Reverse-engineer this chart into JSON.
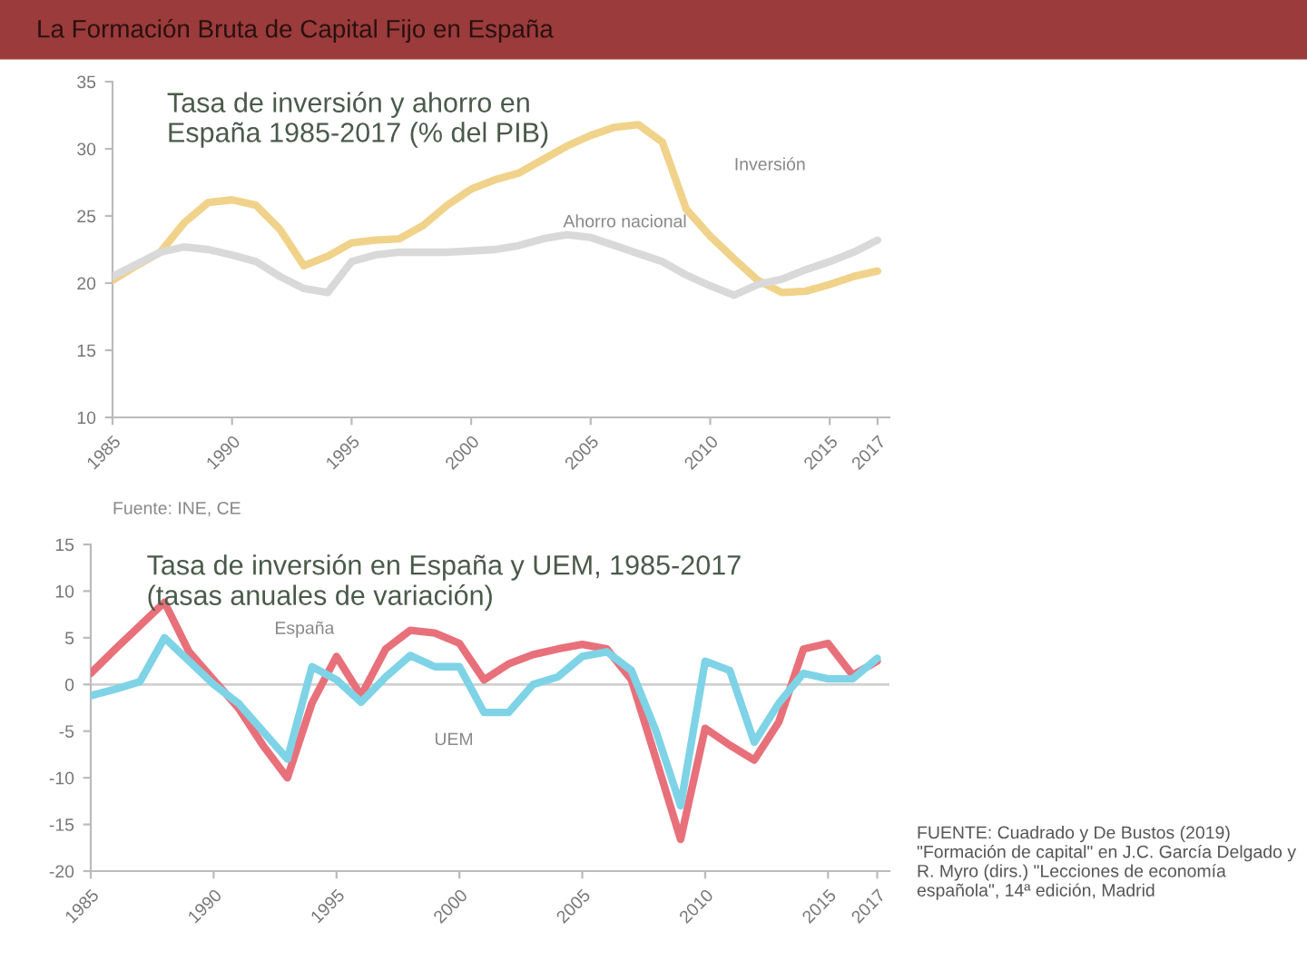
{
  "chart_data": [
    {
      "type": "line",
      "title": "Tasa de inversión y ahorro en\nEspaña 1985-2017 (% del PIB)",
      "x": [
        1985,
        1986,
        1987,
        1988,
        1989,
        1990,
        1991,
        1992,
        1993,
        1994,
        1995,
        1996,
        1997,
        1998,
        1999,
        2000,
        2001,
        2002,
        2003,
        2004,
        2005,
        2006,
        2007,
        2008,
        2009,
        2010,
        2011,
        2012,
        2013,
        2014,
        2015,
        2016,
        2017
      ],
      "series": [
        {
          "color": "#f0d28a",
          "values": [
            20.2,
            21.3,
            22.3,
            24.5,
            26,
            26.2,
            25.8,
            24,
            21.3,
            22,
            23,
            23.2,
            23.3,
            24.3,
            25.8,
            27,
            27.7,
            28.2,
            29.2,
            30.2,
            31,
            31.6,
            31.8,
            30.5,
            25.5,
            23.5,
            21.8,
            20.2,
            19.3,
            19.4,
            19.9,
            20.5,
            20.9
          ]
        },
        {
          "color": "#d9d9d9",
          "values": [
            20.5,
            21.4,
            22.3,
            22.7,
            22.5,
            22.1,
            21.6,
            20.5,
            19.6,
            19.3,
            21.6,
            22.1,
            22.3,
            22.3,
            22.3,
            22.4,
            22.5,
            22.8,
            23.3,
            23.6,
            23.4,
            22.8,
            22.2,
            21.6,
            20.6,
            19.8,
            19.1,
            19.9,
            20.3,
            21,
            21.6,
            22.3,
            23.2
          ]
        }
      ],
      "xlim": [
        1985,
        2017.5
      ],
      "xticks": [
        1985,
        1990,
        1995,
        2000,
        2005,
        2010,
        2015,
        2017
      ],
      "ylim": [
        10,
        35
      ],
      "yticks": [
        10,
        15,
        20,
        25,
        30,
        35
      ],
      "annotations": [
        "La Formación Bruta de Capital Fijo en España",
        "Fuente: INE, CE",
        "Inversión",
        "Ahorro nacional"
      ]
    },
    {
      "type": "line",
      "title": "Tasa de inversión en España y UEM, 1985-2017\n(tasas anuales de variación)",
      "x": [
        1985,
        1986,
        1987,
        1988,
        1989,
        1990,
        1991,
        1992,
        1993,
        1994,
        1995,
        1996,
        1997,
        1998,
        1999,
        2000,
        2001,
        2002,
        2003,
        2004,
        2005,
        2006,
        2007,
        2008,
        2009,
        2010,
        2011,
        2012,
        2013,
        2014,
        2015,
        2016,
        2017
      ],
      "series": [
        {
          "color": "#e8707a",
          "values": [
            1.2,
            3.8,
            6.3,
            8.8,
            3.5,
            0.5,
            -2.5,
            -6.5,
            -10,
            -2,
            3,
            -1.2,
            3.8,
            5.8,
            5.5,
            4.4,
            0.5,
            2.2,
            3.2,
            3.8,
            4.3,
            3.8,
            0.5,
            -8,
            -16.6,
            -4.7,
            -6.5,
            -8.1,
            -4,
            3.8,
            4.4,
            1,
            2.5
          ]
        },
        {
          "color": "#7fd3e6",
          "values": [
            -1.2,
            -0.5,
            0.3,
            5,
            2.5,
            0,
            -2,
            -5,
            -8,
            1.9,
            0.5,
            -1.9,
            0.8,
            3.1,
            1.9,
            1.9,
            -3,
            -3,
            0,
            0.8,
            3,
            3.5,
            1.5,
            -5,
            -13,
            2.5,
            1.5,
            -6.2,
            -2,
            1.2,
            0.6,
            0.6,
            2.8
          ]
        }
      ],
      "xlim": [
        1985,
        2017.5
      ],
      "xticks": [
        1985,
        1990,
        1995,
        2000,
        2005,
        2010,
        2015,
        2017
      ],
      "ylim": [
        -20,
        15
      ],
      "yticks": [
        -20,
        -15,
        -10,
        -5,
        0,
        5,
        10,
        15
      ],
      "ref_lines": [
        {
          "axis": "y",
          "value": 0,
          "color": "#d0d0d0"
        }
      ],
      "annotations": [
        "FUENTE: Cuadrado y De Bustos (2019) \"Formación de capital\" en J.C. García Delgado y R. Myro (dirs.) \"Lecciones de economía española\", 14ª edición, Madrid",
        "España",
        "UEM"
      ]
    }
  ]
}
